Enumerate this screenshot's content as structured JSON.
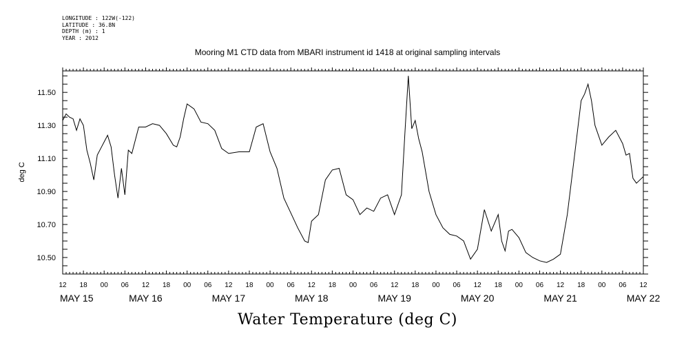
{
  "header": {
    "longitude": "LONGITUDE : 122W(-122)",
    "latitude": "LATITUDE : 36.8N",
    "depth": "DEPTH (m) : 1",
    "year": "YEAR : 2012",
    "title": "Mooring M1 CTD data from MBARI instrument id 1418 at original sampling intervals"
  },
  "chart_data": {
    "type": "line",
    "title": "Mooring M1 CTD data from MBARI instrument id 1418 at original sampling intervals",
    "xlabel": "Water Temperature (deg C)",
    "ylabel": "deg C",
    "grid": false,
    "xlim": [
      "2012-05-15T12:00",
      "2012-05-22T12:00"
    ],
    "ylim": [
      10.4,
      11.63
    ],
    "yticks": [
      "10.50",
      "10.70",
      "10.90",
      "11.10",
      "11.30",
      "11.50"
    ],
    "hour_ticks": [
      "12",
      "18",
      "00",
      "06",
      "12",
      "18",
      "00",
      "06",
      "12",
      "18",
      "00",
      "06",
      "12",
      "18",
      "00",
      "06",
      "12",
      "18",
      "00",
      "06",
      "12",
      "18",
      "00",
      "06",
      "12",
      "18",
      "00",
      "06",
      "12"
    ],
    "day_labels": [
      "MAY 15",
      "MAY 16",
      "MAY 17",
      "MAY 18",
      "MAY 19",
      "MAY 20",
      "MAY 21",
      "MAY 22"
    ],
    "series": [
      {
        "color": "#000000",
        "x": [
          "2012-05-15T12:00",
          "2012-05-15T13:00",
          "2012-05-15T14:00",
          "2012-05-15T15:00",
          "2012-05-15T16:00",
          "2012-05-15T17:00",
          "2012-05-15T18:00",
          "2012-05-15T19:00",
          "2012-05-15T20:00",
          "2012-05-15T21:00",
          "2012-05-15T22:00",
          "2012-05-15T23:00",
          "2012-05-16T00:00",
          "2012-05-16T01:00",
          "2012-05-16T02:00",
          "2012-05-16T03:00",
          "2012-05-16T04:00",
          "2012-05-16T05:00",
          "2012-05-16T06:00",
          "2012-05-16T07:00",
          "2012-05-16T08:00",
          "2012-05-16T10:00",
          "2012-05-16T12:00",
          "2012-05-16T14:00",
          "2012-05-16T16:00",
          "2012-05-16T18:00",
          "2012-05-16T20:00",
          "2012-05-16T21:00",
          "2012-05-16T22:00",
          "2012-05-16T23:00",
          "2012-05-17T00:00",
          "2012-05-17T02:00",
          "2012-05-17T04:00",
          "2012-05-17T06:00",
          "2012-05-17T08:00",
          "2012-05-17T10:00",
          "2012-05-17T12:00",
          "2012-05-17T15:00",
          "2012-05-17T18:00",
          "2012-05-17T20:00",
          "2012-05-17T22:00",
          "2012-05-18T00:00",
          "2012-05-18T02:00",
          "2012-05-18T04:00",
          "2012-05-18T06:00",
          "2012-05-18T08:00",
          "2012-05-18T10:00",
          "2012-05-18T11:00",
          "2012-05-18T12:00",
          "2012-05-18T14:00",
          "2012-05-18T16:00",
          "2012-05-18T18:00",
          "2012-05-18T20:00",
          "2012-05-18T22:00",
          "2012-05-19T00:00",
          "2012-05-19T02:00",
          "2012-05-19T04:00",
          "2012-05-19T06:00",
          "2012-05-19T08:00",
          "2012-05-19T10:00",
          "2012-05-19T12:00",
          "2012-05-19T14:00",
          "2012-05-19T15:00",
          "2012-05-19T16:00",
          "2012-05-19T17:00",
          "2012-05-19T18:00",
          "2012-05-19T19:00",
          "2012-05-19T20:00",
          "2012-05-19T22:00",
          "2012-05-20T00:00",
          "2012-05-20T02:00",
          "2012-05-20T04:00",
          "2012-05-20T06:00",
          "2012-05-20T08:00",
          "2012-05-20T10:00",
          "2012-05-20T12:00",
          "2012-05-20T14:00",
          "2012-05-20T16:00",
          "2012-05-20T18:00",
          "2012-05-20T19:00",
          "2012-05-20T20:00",
          "2012-05-20T21:00",
          "2012-05-20T22:00",
          "2012-05-21T00:00",
          "2012-05-21T02:00",
          "2012-05-21T04:00",
          "2012-05-21T06:00",
          "2012-05-21T08:00",
          "2012-05-21T10:00",
          "2012-05-21T12:00",
          "2012-05-21T14:00",
          "2012-05-21T16:00",
          "2012-05-21T18:00",
          "2012-05-21T19:00",
          "2012-05-21T20:00",
          "2012-05-21T21:00",
          "2012-05-21T22:00",
          "2012-05-22T00:00",
          "2012-05-22T02:00",
          "2012-05-22T04:00",
          "2012-05-22T06:00",
          "2012-05-22T07:00",
          "2012-05-22T08:00",
          "2012-05-22T09:00",
          "2012-05-22T10:00",
          "2012-05-22T11:00",
          "2012-05-22T12:00"
        ],
        "y": [
          11.33,
          11.37,
          11.35,
          11.34,
          11.27,
          11.34,
          11.3,
          11.15,
          11.07,
          10.97,
          11.12,
          11.16,
          11.2,
          11.24,
          11.17,
          11.0,
          10.86,
          11.04,
          10.88,
          11.15,
          11.13,
          11.29,
          11.29,
          11.31,
          11.3,
          11.25,
          11.18,
          11.17,
          11.23,
          11.34,
          11.43,
          11.4,
          11.32,
          11.31,
          11.27,
          11.16,
          11.13,
          11.14,
          11.14,
          11.29,
          11.31,
          11.14,
          11.04,
          10.86,
          10.77,
          10.68,
          10.6,
          10.59,
          10.72,
          10.76,
          10.97,
          11.03,
          11.04,
          10.88,
          10.85,
          10.76,
          10.8,
          10.78,
          10.86,
          10.88,
          10.76,
          10.88,
          11.25,
          11.6,
          11.28,
          11.33,
          11.22,
          11.14,
          10.9,
          10.76,
          10.68,
          10.64,
          10.63,
          10.6,
          10.49,
          10.55,
          10.79,
          10.66,
          10.76,
          10.6,
          10.54,
          10.66,
          10.67,
          10.62,
          10.53,
          10.5,
          10.48,
          10.47,
          10.49,
          10.52,
          10.76,
          11.1,
          11.45,
          11.49,
          11.55,
          11.45,
          11.3,
          11.18,
          11.23,
          11.27,
          11.19,
          11.12,
          11.13,
          10.98,
          10.95,
          10.97,
          10.99
        ]
      }
    ]
  }
}
